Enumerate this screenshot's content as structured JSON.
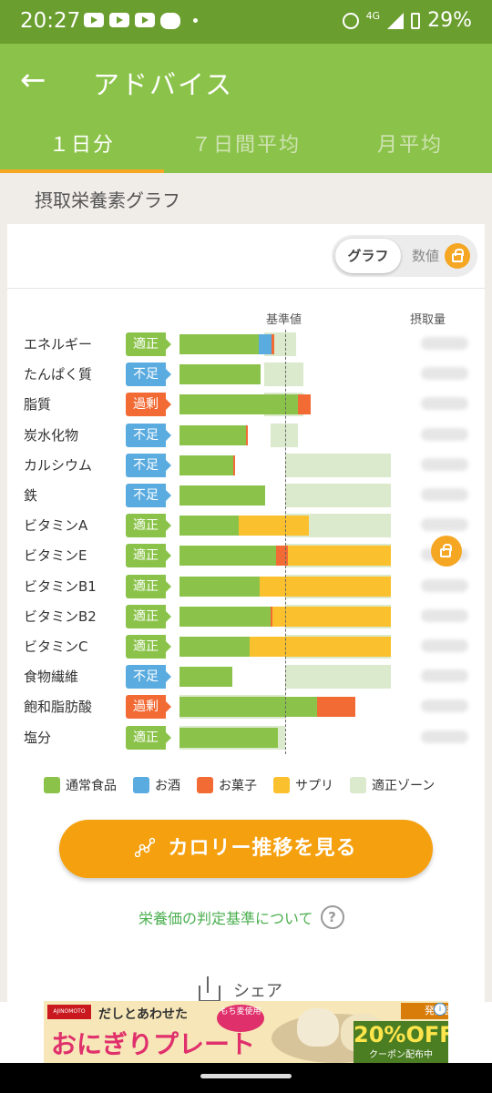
{
  "status_bar": {
    "time": "20:27",
    "network": "4G",
    "battery": "29%"
  },
  "app_bar": {
    "title": "アドバイス",
    "tabs": [
      {
        "label": "１日分",
        "active": true
      },
      {
        "label": "７日間平均",
        "active": false
      },
      {
        "label": "月平均",
        "active": false
      }
    ]
  },
  "section": {
    "title": "摂取栄養素グラフ"
  },
  "toggle": {
    "graph_label": "グラフ",
    "value_label": "数値"
  },
  "chart_data": {
    "type": "bar",
    "stacked": true,
    "column_headers": {
      "standard": "基準値",
      "intake": "摂取量"
    },
    "scale_note": "values in percent of standard (基準値 = 100)",
    "series": [
      {
        "name": "通常食品",
        "color": "#8bc34a"
      },
      {
        "name": "お酒",
        "color": "#5aabdf"
      },
      {
        "name": "お菓子",
        "color": "#f26b35"
      },
      {
        "name": "サプリ",
        "color": "#fbc02d"
      }
    ],
    "zone_series": {
      "name": "適正ゾーン",
      "color": "#dbe9cc"
    },
    "rows": [
      {
        "label": "エネルギー",
        "status": "適正",
        "status_type": "ok",
        "zone": [
          80,
          110
        ],
        "food": 75,
        "alcohol": 12,
        "snack": 3,
        "supplement": 0
      },
      {
        "label": "たんぱく質",
        "status": "不足",
        "status_type": "low",
        "zone": [
          80,
          117
        ],
        "food": 77,
        "alcohol": 0,
        "snack": 0,
        "supplement": 0
      },
      {
        "label": "脂質",
        "status": "過剰",
        "status_type": "over",
        "zone": [
          80,
          117
        ],
        "food": 112,
        "alcohol": 0,
        "snack": 12,
        "supplement": 0
      },
      {
        "label": "炭水化物",
        "status": "不足",
        "status_type": "low",
        "zone": [
          86,
          112
        ],
        "food": 63,
        "alcohol": 0,
        "snack": 2,
        "supplement": 0
      },
      {
        "label": "カルシウム",
        "status": "不足",
        "status_type": "low",
        "zone": [
          100,
          200
        ],
        "food": 51,
        "alcohol": 0,
        "snack": 2,
        "supplement": 0
      },
      {
        "label": "鉄",
        "status": "不足",
        "status_type": "low",
        "zone": [
          100,
          200
        ],
        "food": 81,
        "alcohol": 0,
        "snack": 0,
        "supplement": 0
      },
      {
        "label": "ビタミンA",
        "status": "適正",
        "status_type": "ok",
        "zone": [
          100,
          200
        ],
        "food": 56,
        "alcohol": 0,
        "snack": 0,
        "supplement": 66
      },
      {
        "label": "ビタミンE",
        "status": "適正",
        "status_type": "ok",
        "zone": [
          100,
          200
        ],
        "food": 91,
        "alcohol": 0,
        "snack": 12,
        "supplement": 97
      },
      {
        "label": "ビタミンB1",
        "status": "適正",
        "status_type": "ok",
        "zone": [
          100,
          200
        ],
        "food": 76,
        "alcohol": 0,
        "snack": 0,
        "supplement": 124
      },
      {
        "label": "ビタミンB2",
        "status": "適正",
        "status_type": "ok",
        "zone": [
          100,
          200
        ],
        "food": 86,
        "alcohol": 0,
        "snack": 2,
        "supplement": 112
      },
      {
        "label": "ビタミンC",
        "status": "適正",
        "status_type": "ok",
        "zone": [
          100,
          200
        ],
        "food": 66,
        "alcohol": 0,
        "snack": 0,
        "supplement": 134
      },
      {
        "label": "食物繊維",
        "status": "不足",
        "status_type": "low",
        "zone": [
          100,
          200
        ],
        "food": 50,
        "alcohol": 0,
        "snack": 0,
        "supplement": 0
      },
      {
        "label": "飽和脂肪酸",
        "status": "過剰",
        "status_type": "over",
        "zone": [
          0,
          100
        ],
        "food": 130,
        "alcohol": 0,
        "snack": 36,
        "supplement": 0
      },
      {
        "label": "塩分",
        "status": "適正",
        "status_type": "ok",
        "zone": [
          0,
          100
        ],
        "food": 93,
        "alcohol": 0,
        "snack": 0,
        "supplement": 0
      }
    ],
    "xlim": [
      0,
      200
    ]
  },
  "legend": [
    {
      "label": "通常食品",
      "color": "#8bc34a"
    },
    {
      "label": "お酒",
      "color": "#5aabdf"
    },
    {
      "label": "お菓子",
      "color": "#f26b35"
    },
    {
      "label": "サプリ",
      "color": "#fbc02d"
    },
    {
      "label": "適正ゾーン",
      "color": "#dbe9cc"
    }
  ],
  "cta": {
    "label": "カロリー推移を見る"
  },
  "criteria_link": {
    "label": "栄養価の判定基準について",
    "help": "?"
  },
  "share": {
    "label": "シェア"
  },
  "ad": {
    "tagline": "だしとあわせた",
    "sticker": "もち麦使用",
    "title": "おにぎりプレート",
    "badge": "発売記念",
    "discount": "20%OFF",
    "discount_sub": "クーポン配布中",
    "logo": "AJINOMOTO"
  }
}
